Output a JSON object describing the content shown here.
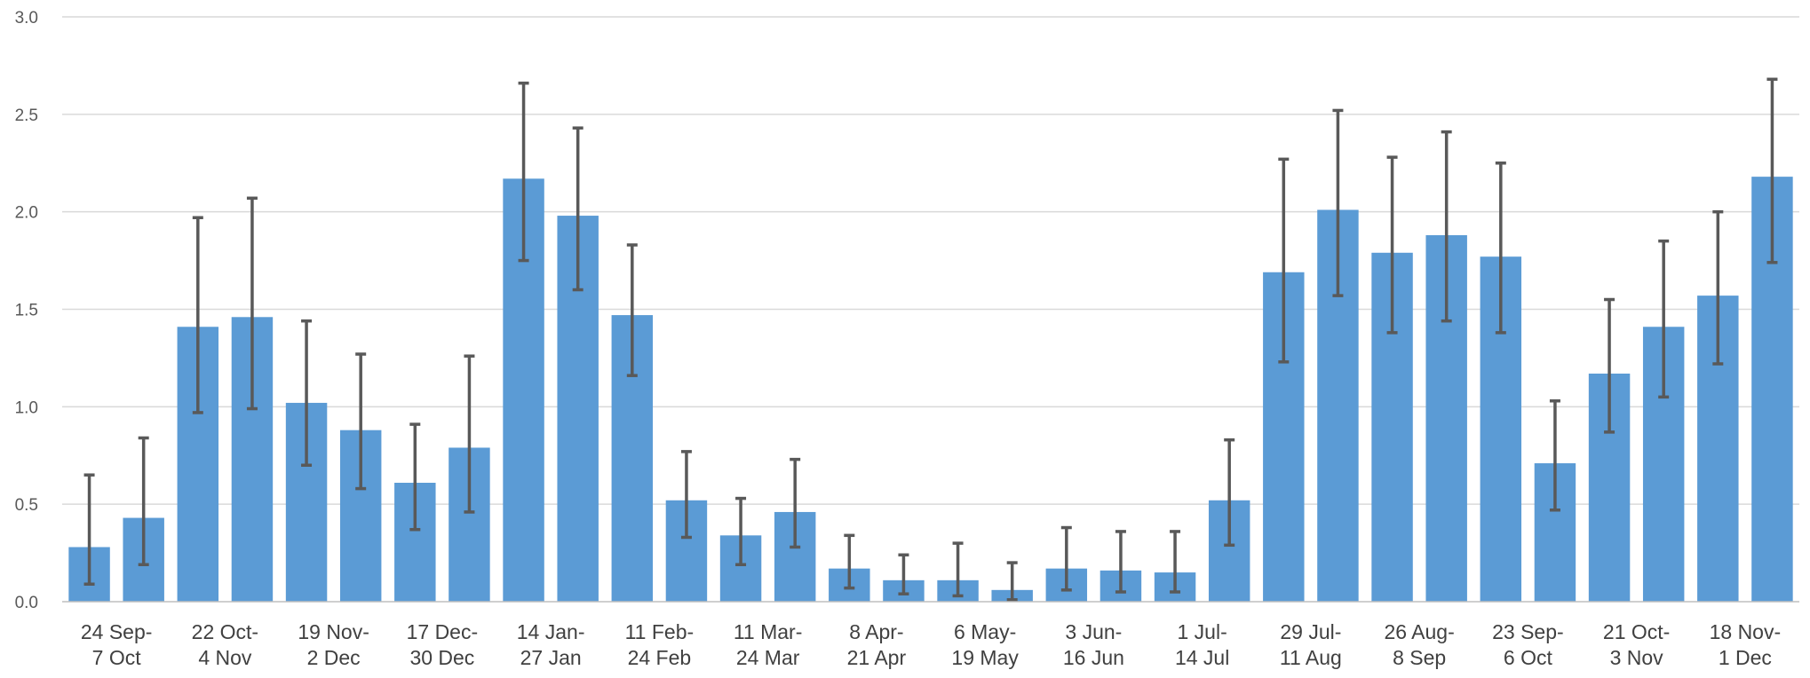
{
  "chart_data": {
    "type": "bar",
    "title": "",
    "xlabel": "",
    "ylabel": "",
    "ylim": [
      0,
      3.0
    ],
    "yticks": [
      "0.0",
      "0.5",
      "1.0",
      "1.5",
      "2.0",
      "2.5",
      "3.0"
    ],
    "grid": true,
    "bar_color": "#5b9bd5",
    "error_bar_color": "#595959",
    "categories": [
      "24 Sep-|7 Oct",
      "",
      "22 Oct-|4 Nov",
      "",
      "19 Nov-|2 Dec",
      "",
      "17 Dec-|30 Dec",
      "",
      "14 Jan-|27 Jan",
      "",
      "11 Feb-|24 Feb",
      "",
      "11 Mar-|24 Mar",
      "",
      "8 Apr-|21 Apr",
      "",
      "6 May-|19 May",
      "",
      "3 Jun-|16 Jun",
      "",
      "1 Jul-|14 Jul",
      "",
      "29 Jul-|11 Aug",
      "",
      "26 Aug-|8 Sep",
      "",
      "23 Sep-|6 Oct",
      "",
      "21 Oct-|3 Nov",
      "",
      "18 Nov-|1 Dec",
      ""
    ],
    "values": [
      0.28,
      0.43,
      1.41,
      1.46,
      1.02,
      0.88,
      0.61,
      0.79,
      2.17,
      1.98,
      1.47,
      0.52,
      0.34,
      0.46,
      0.17,
      0.11,
      0.11,
      0.06,
      0.17,
      0.16,
      0.15,
      0.52,
      1.69,
      2.01,
      1.79,
      1.88,
      1.77,
      0.71,
      1.17,
      1.41,
      1.57,
      2.18
    ],
    "error_low": [
      0.09,
      0.19,
      0.97,
      0.99,
      0.7,
      0.58,
      0.37,
      0.46,
      1.75,
      1.6,
      1.16,
      0.33,
      0.19,
      0.28,
      0.07,
      0.04,
      0.03,
      0.01,
      0.06,
      0.05,
      0.05,
      0.29,
      1.23,
      1.57,
      1.38,
      1.44,
      1.38,
      0.47,
      0.87,
      1.05,
      1.22,
      1.74
    ],
    "error_high": [
      0.65,
      0.84,
      1.97,
      2.07,
      1.44,
      1.27,
      0.91,
      1.26,
      2.66,
      2.43,
      1.83,
      0.77,
      0.53,
      0.73,
      0.34,
      0.24,
      0.3,
      0.2,
      0.38,
      0.36,
      0.36,
      0.83,
      2.27,
      2.52,
      2.28,
      2.41,
      2.25,
      1.03,
      1.55,
      1.85,
      2.0,
      2.68
    ]
  }
}
